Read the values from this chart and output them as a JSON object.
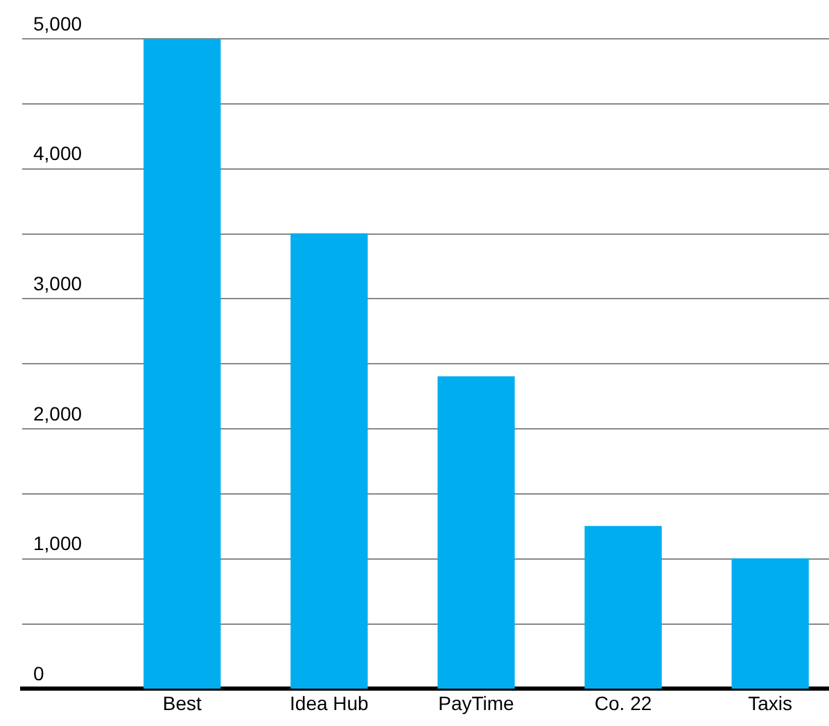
{
  "chart_data": {
    "type": "bar",
    "categories": [
      "Best",
      "Idea Hub",
      "PayTime",
      "Co. 22",
      "Taxis"
    ],
    "values": [
      5000,
      3500,
      2400,
      1250,
      1000
    ],
    "color": "#00adef",
    "ylim": [
      0,
      5000
    ],
    "yticks": [
      0,
      {
        "value": 500,
        "label": null
      },
      {
        "value": 1000,
        "label": "1,000"
      },
      {
        "value": 1500,
        "label": null
      },
      {
        "value": 2000,
        "label": "2,000"
      },
      {
        "value": 2500,
        "label": null
      },
      {
        "value": 3000,
        "label": "3,000"
      },
      {
        "value": 3500,
        "label": null
      },
      {
        "value": 4000,
        "label": "4,000"
      },
      {
        "value": 4500,
        "label": null
      },
      {
        "value": 5000,
        "label": "5,000"
      }
    ],
    "grid": "y",
    "legend": false
  }
}
